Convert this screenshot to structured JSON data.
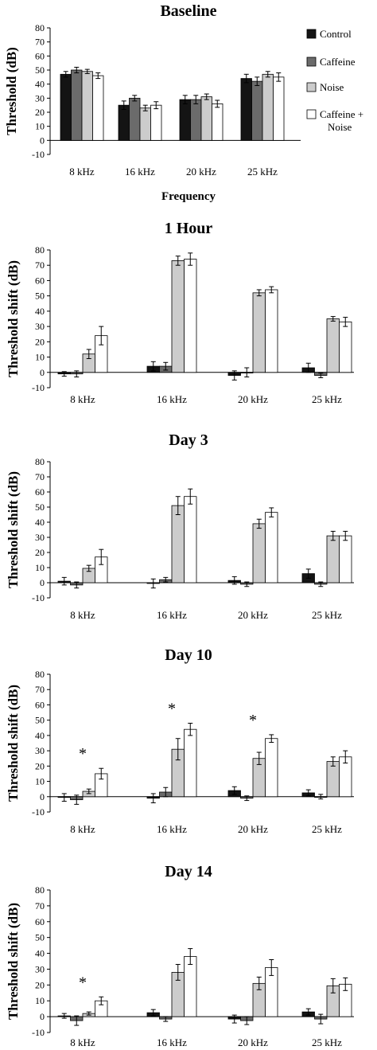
{
  "colors": {
    "control": "#141414",
    "caffeine": "#6b6b6b",
    "noise": "#cccccc",
    "caffeine_noise": "#ffffff",
    "axis": "#000000"
  },
  "legend": {
    "items": [
      "Control",
      "Caffeine",
      "Noise",
      "Caffeine +\nNoise"
    ]
  },
  "chart_data": [
    {
      "type": "bar",
      "title": "Baseline",
      "xlabel": "Frequency",
      "ylabel": "Threshold (dB)",
      "ylim": [
        -10,
        80
      ],
      "yticks": [
        -10,
        0,
        10,
        20,
        30,
        40,
        50,
        60,
        70,
        80
      ],
      "categories": [
        "8 kHz",
        "16 kHz",
        "20 kHz",
        "25 kHz"
      ],
      "series": [
        {
          "name": "Control",
          "values": [
            47,
            25,
            29,
            44
          ],
          "errors": [
            2,
            3,
            3,
            3
          ]
        },
        {
          "name": "Caffeine",
          "values": [
            50,
            30,
            29,
            42
          ],
          "errors": [
            2,
            2,
            3,
            3
          ]
        },
        {
          "name": "Noise",
          "values": [
            49,
            23,
            31,
            47
          ],
          "errors": [
            1.5,
            2,
            2,
            2
          ]
        },
        {
          "name": "Caffeine + Noise",
          "values": [
            46,
            25,
            26,
            45
          ],
          "errors": [
            2,
            2.5,
            2.5,
            3
          ]
        }
      ],
      "significance": []
    },
    {
      "type": "bar",
      "title": "1 Hour",
      "xlabel": "",
      "ylabel": "Threshold shift (dB)",
      "ylim": [
        -10,
        80
      ],
      "yticks": [
        -10,
        0,
        10,
        20,
        30,
        40,
        50,
        60,
        70,
        80
      ],
      "categories": [
        "8 kHz",
        "16 kHz",
        "20 kHz",
        "25 kHz"
      ],
      "series": [
        {
          "name": "Control",
          "values": [
            -1,
            4,
            -2,
            3
          ],
          "errors": [
            1.5,
            3,
            3,
            3
          ]
        },
        {
          "name": "Caffeine",
          "values": [
            -1,
            4,
            0,
            -2
          ],
          "errors": [
            2,
            2.5,
            3,
            1.5
          ]
        },
        {
          "name": "Noise",
          "values": [
            12,
            73,
            52,
            35
          ],
          "errors": [
            3,
            3,
            2,
            1.5
          ]
        },
        {
          "name": "Caffeine + Noise",
          "values": [
            24,
            74,
            54,
            33
          ],
          "errors": [
            6,
            4,
            2,
            3
          ]
        }
      ],
      "significance": []
    },
    {
      "type": "bar",
      "title": "Day 3",
      "xlabel": "",
      "ylabel": "Threshold shift (dB)",
      "ylim": [
        -10,
        80
      ],
      "yticks": [
        -10,
        0,
        10,
        20,
        30,
        40,
        50,
        60,
        70,
        80
      ],
      "categories": [
        "8 kHz",
        "16 kHz",
        "20 kHz",
        "25 kHz"
      ],
      "series": [
        {
          "name": "Control",
          "values": [
            1,
            -0.5,
            1.5,
            6
          ],
          "errors": [
            2.5,
            3,
            2.5,
            3
          ]
        },
        {
          "name": "Caffeine",
          "values": [
            -1.5,
            2,
            -1,
            -1
          ],
          "errors": [
            2,
            1.5,
            1.5,
            1.5
          ]
        },
        {
          "name": "Noise",
          "values": [
            9.5,
            51,
            39,
            31
          ],
          "errors": [
            2,
            6,
            3,
            3
          ]
        },
        {
          "name": "Caffeine + Noise",
          "values": [
            17,
            57,
            46.5,
            31
          ],
          "errors": [
            5,
            5,
            3,
            3
          ]
        }
      ],
      "significance": []
    },
    {
      "type": "bar",
      "title": "Day 10",
      "xlabel": "",
      "ylabel": "Threshold shift (dB)",
      "ylim": [
        -10,
        80
      ],
      "yticks": [
        -10,
        0,
        10,
        20,
        30,
        40,
        50,
        60,
        70,
        80
      ],
      "categories": [
        "8 kHz",
        "16 kHz",
        "20 kHz",
        "25 kHz"
      ],
      "series": [
        {
          "name": "Control",
          "values": [
            -0.5,
            -1,
            4,
            2.5
          ],
          "errors": [
            2.5,
            3,
            2.5,
            2
          ]
        },
        {
          "name": "Caffeine",
          "values": [
            -2,
            3,
            -1,
            0
          ],
          "errors": [
            3,
            3,
            1.5,
            1.5
          ]
        },
        {
          "name": "Noise",
          "values": [
            3.5,
            31,
            25,
            23
          ],
          "errors": [
            1.5,
            7,
            4,
            3
          ]
        },
        {
          "name": "Caffeine + Noise",
          "values": [
            15,
            44,
            38,
            26
          ],
          "errors": [
            3.5,
            4,
            2.5,
            4
          ]
        }
      ],
      "significance": [
        {
          "category": 0,
          "label": "*"
        },
        {
          "category": 1,
          "label": "*"
        },
        {
          "category": 2,
          "label": "*"
        }
      ]
    },
    {
      "type": "bar",
      "title": "Day 14",
      "xlabel": "",
      "ylabel": "Threshold shift (dB)",
      "ylim": [
        -10,
        80
      ],
      "yticks": [
        -10,
        0,
        10,
        20,
        30,
        40,
        50,
        60,
        70,
        80
      ],
      "categories": [
        "8 kHz",
        "16 kHz",
        "20 kHz",
        "25 kHz"
      ],
      "series": [
        {
          "name": "Control",
          "values": [
            0.5,
            2.5,
            -1.5,
            3
          ],
          "errors": [
            1.5,
            2,
            2.5,
            2
          ]
        },
        {
          "name": "Caffeine",
          "values": [
            -2.5,
            -1.5,
            -2.5,
            -1.5
          ],
          "errors": [
            3,
            1.5,
            2.5,
            3
          ]
        },
        {
          "name": "Noise",
          "values": [
            2,
            28,
            21,
            19.5
          ],
          "errors": [
            1,
            5,
            4,
            4.5
          ]
        },
        {
          "name": "Caffeine + Noise",
          "values": [
            10,
            38,
            31,
            20.5
          ],
          "errors": [
            2.5,
            5,
            5,
            4
          ]
        }
      ],
      "significance": [
        {
          "category": 0,
          "label": "*"
        }
      ]
    }
  ]
}
